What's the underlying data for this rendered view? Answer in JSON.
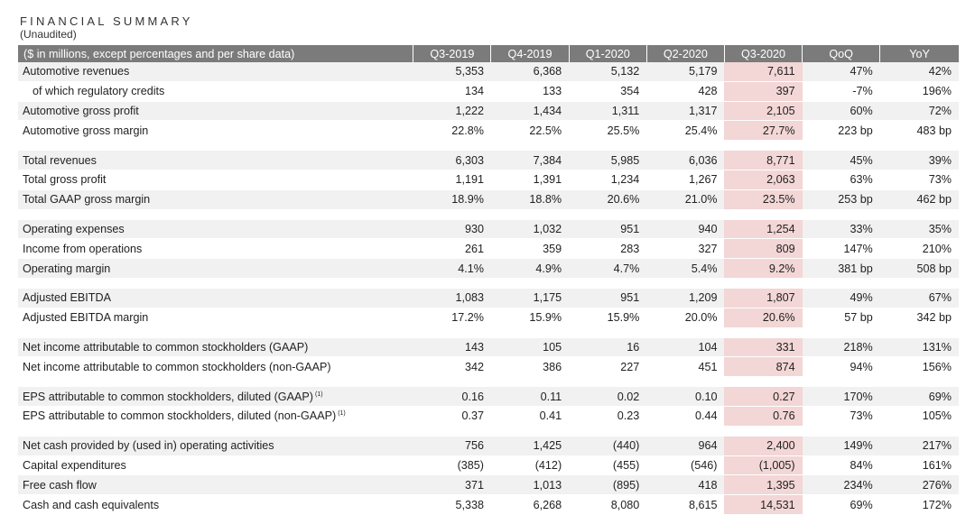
{
  "title": "FINANCIAL SUMMARY",
  "subtitle": "(Unaudited)",
  "headers": [
    "($ in millions, except percentages and per share data)",
    "Q3-2019",
    "Q4-2019",
    "Q1-2020",
    "Q2-2020",
    "Q3-2020",
    "QoQ",
    "YoY"
  ],
  "groups": [
    {
      "rows": [
        {
          "label": "Automotive revenues",
          "indent": false,
          "note": "",
          "values": [
            "5,353",
            "6,368",
            "5,132",
            "5,179",
            "7,611",
            "47%",
            "42%"
          ]
        },
        {
          "label": "of which regulatory credits",
          "indent": true,
          "note": "",
          "values": [
            "134",
            "133",
            "354",
            "428",
            "397",
            "-7%",
            "196%"
          ]
        },
        {
          "label": "Automotive gross profit",
          "indent": false,
          "note": "",
          "values": [
            "1,222",
            "1,434",
            "1,311",
            "1,317",
            "2,105",
            "60%",
            "72%"
          ]
        },
        {
          "label": "Automotive gross margin",
          "indent": false,
          "note": "",
          "values": [
            "22.8%",
            "22.5%",
            "25.5%",
            "25.4%",
            "27.7%",
            "223 bp",
            "483 bp"
          ]
        }
      ]
    },
    {
      "rows": [
        {
          "label": "Total revenues",
          "indent": false,
          "note": "",
          "values": [
            "6,303",
            "7,384",
            "5,985",
            "6,036",
            "8,771",
            "45%",
            "39%"
          ]
        },
        {
          "label": "Total gross profit",
          "indent": false,
          "note": "",
          "values": [
            "1,191",
            "1,391",
            "1,234",
            "1,267",
            "2,063",
            "63%",
            "73%"
          ]
        },
        {
          "label": "Total GAAP gross margin",
          "indent": false,
          "note": "",
          "values": [
            "18.9%",
            "18.8%",
            "20.6%",
            "21.0%",
            "23.5%",
            "253 bp",
            "462 bp"
          ]
        }
      ]
    },
    {
      "rows": [
        {
          "label": "Operating expenses",
          "indent": false,
          "note": "",
          "values": [
            "930",
            "1,032",
            "951",
            "940",
            "1,254",
            "33%",
            "35%"
          ]
        },
        {
          "label": "Income from operations",
          "indent": false,
          "note": "",
          "values": [
            "261",
            "359",
            "283",
            "327",
            "809",
            "147%",
            "210%"
          ]
        },
        {
          "label": "Operating margin",
          "indent": false,
          "note": "",
          "values": [
            "4.1%",
            "4.9%",
            "4.7%",
            "5.4%",
            "9.2%",
            "381 bp",
            "508 bp"
          ]
        }
      ]
    },
    {
      "rows": [
        {
          "label": "Adjusted EBITDA",
          "indent": false,
          "note": "",
          "values": [
            "1,083",
            "1,175",
            "951",
            "1,209",
            "1,807",
            "49%",
            "67%"
          ]
        },
        {
          "label": "Adjusted EBITDA margin",
          "indent": false,
          "note": "",
          "values": [
            "17.2%",
            "15.9%",
            "15.9%",
            "20.0%",
            "20.6%",
            "57 bp",
            "342 bp"
          ]
        }
      ]
    },
    {
      "rows": [
        {
          "label": "Net income attributable to common stockholders (GAAP)",
          "indent": false,
          "note": "",
          "values": [
            "143",
            "105",
            "16",
            "104",
            "331",
            "218%",
            "131%"
          ]
        },
        {
          "label": "Net income attributable to common stockholders (non-GAAP)",
          "indent": false,
          "note": "",
          "values": [
            "342",
            "386",
            "227",
            "451",
            "874",
            "94%",
            "156%"
          ]
        }
      ]
    },
    {
      "rows": [
        {
          "label": "EPS attributable to common stockholders, diluted (GAAP)",
          "indent": false,
          "note": "(1)",
          "values": [
            "0.16",
            "0.11",
            "0.02",
            "0.10",
            "0.27",
            "170%",
            "69%"
          ]
        },
        {
          "label": "EPS attributable to common stockholders, diluted (non-GAAP)",
          "indent": false,
          "note": "(1)",
          "values": [
            "0.37",
            "0.41",
            "0.23",
            "0.44",
            "0.76",
            "73%",
            "105%"
          ]
        }
      ]
    },
    {
      "rows": [
        {
          "label": "Net cash provided by (used in) operating activities",
          "indent": false,
          "note": "",
          "values": [
            "756",
            "1,425",
            "(440)",
            "964",
            "2,400",
            "149%",
            "217%"
          ]
        },
        {
          "label": "Capital expenditures",
          "indent": false,
          "note": "",
          "values": [
            "(385)",
            "(412)",
            "(455)",
            "(546)",
            "(1,005)",
            "84%",
            "161%"
          ]
        },
        {
          "label": "Free cash flow",
          "indent": false,
          "note": "",
          "values": [
            "371",
            "1,013",
            "(895)",
            "418",
            "1,395",
            "234%",
            "276%"
          ]
        },
        {
          "label": "Cash and cash equivalents",
          "indent": false,
          "note": "",
          "values": [
            "5,338",
            "6,268",
            "8,080",
            "8,615",
            "14,531",
            "69%",
            "172%"
          ]
        }
      ]
    }
  ],
  "colors": {
    "header_bg": "#7b7b7b",
    "highlight": "#f3d6d6",
    "row_shade": "#f1f1f1"
  }
}
